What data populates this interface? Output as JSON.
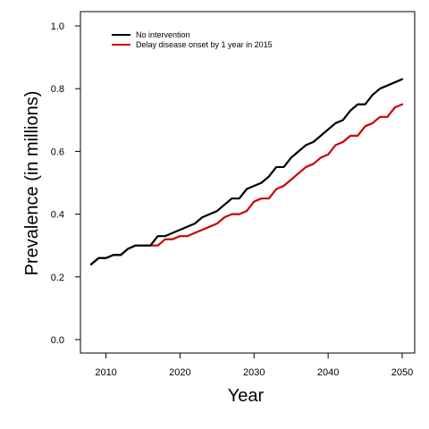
{
  "chart_data": {
    "type": "line",
    "xlabel": "Year",
    "ylabel": "Prevalence (in millions)",
    "xlim": [
      2008,
      2050
    ],
    "ylim": [
      0,
      1.0
    ],
    "x_ticks": [
      2010,
      2020,
      2030,
      2040,
      2050
    ],
    "y_ticks": [
      "0.0",
      "0.2",
      "0.4",
      "0.6",
      "0.8",
      "1.0"
    ],
    "legend_position": "top-left",
    "x": [
      2008,
      2009,
      2010,
      2011,
      2012,
      2013,
      2014,
      2015,
      2016,
      2017,
      2018,
      2019,
      2020,
      2021,
      2022,
      2023,
      2024,
      2025,
      2026,
      2027,
      2028,
      2029,
      2030,
      2031,
      2032,
      2033,
      2034,
      2035,
      2036,
      2037,
      2038,
      2039,
      2040,
      2041,
      2042,
      2043,
      2044,
      2045,
      2046,
      2047,
      2048,
      2049,
      2050
    ],
    "series": [
      {
        "name": "No intervention",
        "color": "#000000",
        "values": [
          0.24,
          0.26,
          0.26,
          0.27,
          0.27,
          0.29,
          0.3,
          0.3,
          0.3,
          0.33,
          0.33,
          0.34,
          0.35,
          0.36,
          0.37,
          0.39,
          0.4,
          0.41,
          0.43,
          0.45,
          0.45,
          0.48,
          0.49,
          0.5,
          0.52,
          0.55,
          0.55,
          0.58,
          0.6,
          0.62,
          0.63,
          0.65,
          0.67,
          0.69,
          0.7,
          0.73,
          0.75,
          0.75,
          0.78,
          0.8,
          0.81,
          0.82,
          0.83
        ]
      },
      {
        "name": "Delay disease onset by 1 year in 2015",
        "color": "#cc0000",
        "values": [
          0.24,
          0.26,
          0.26,
          0.27,
          0.27,
          0.29,
          0.3,
          0.3,
          0.3,
          0.3,
          0.32,
          0.32,
          0.33,
          0.33,
          0.34,
          0.35,
          0.36,
          0.37,
          0.39,
          0.4,
          0.4,
          0.41,
          0.44,
          0.45,
          0.45,
          0.48,
          0.49,
          0.51,
          0.53,
          0.55,
          0.56,
          0.58,
          0.59,
          0.62,
          0.63,
          0.65,
          0.65,
          0.68,
          0.69,
          0.71,
          0.71,
          0.74,
          0.75
        ]
      }
    ]
  }
}
